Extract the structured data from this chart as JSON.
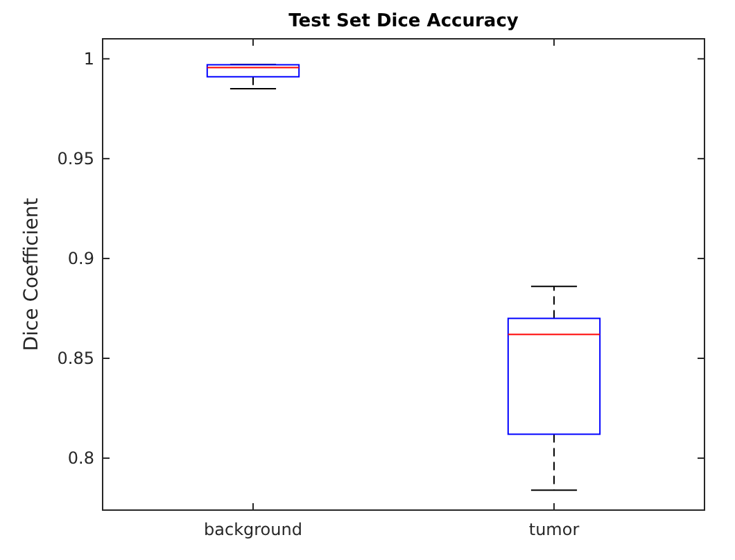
{
  "chart_data": {
    "type": "box",
    "title": "Test Set Dice Accuracy",
    "ylabel": "Dice Coefficient",
    "categories": [
      "background",
      "tumor"
    ],
    "series": [
      {
        "color": "#0000ff",
        "boxes": [
          {
            "low": 0.985,
            "q1": 0.991,
            "median": 0.9956,
            "q3": 0.997,
            "high": 0.9972
          },
          {
            "low": 0.784,
            "q1": 0.812,
            "median": 0.862,
            "q3": 0.87,
            "high": 0.886
          }
        ]
      }
    ],
    "line_style": "dashed",
    "ylim": [
      0.774,
      1.01
    ],
    "yticks": [
      0.8,
      0.85,
      0.9,
      0.95,
      1
    ],
    "grid": false
  }
}
